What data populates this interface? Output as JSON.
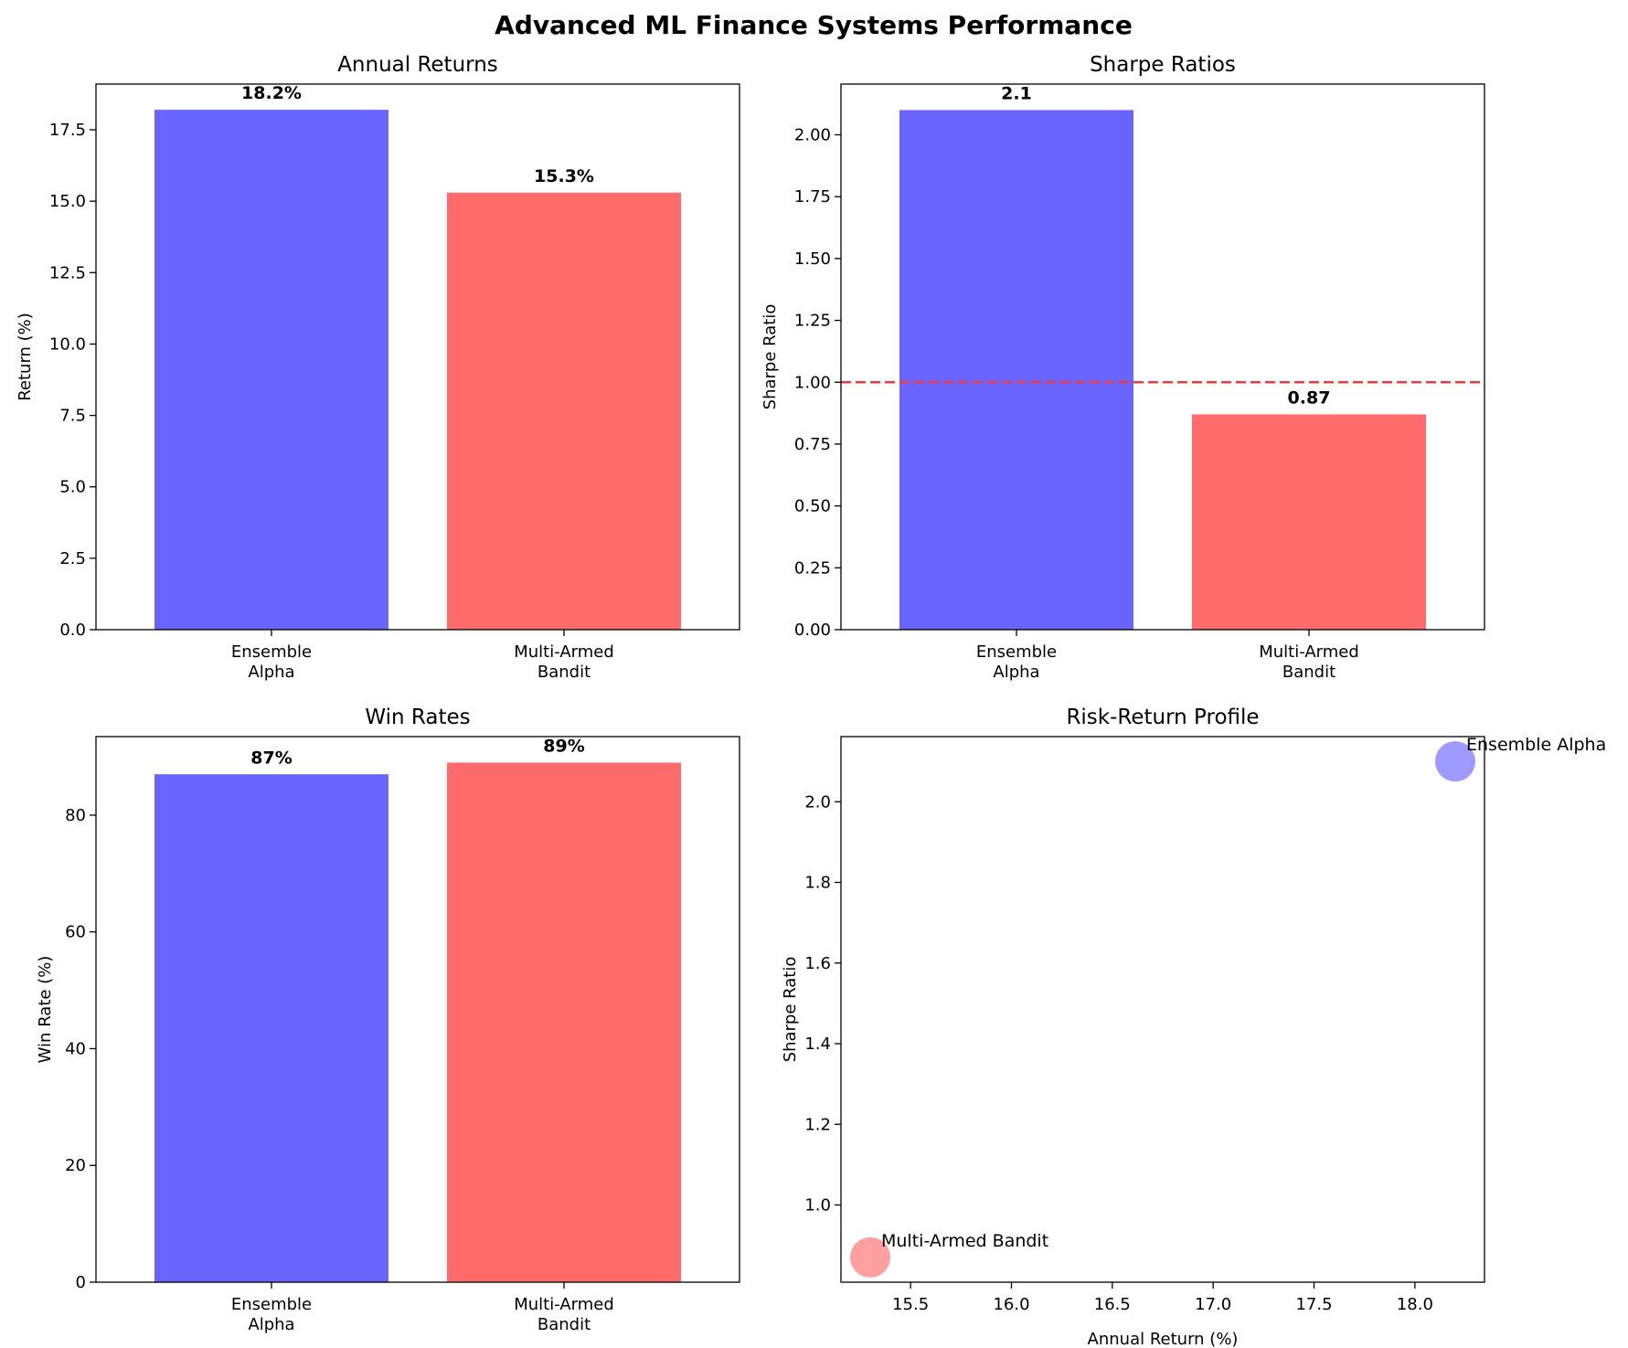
{
  "figure_title": "Advanced ML Finance Systems Performance",
  "colors": {
    "ensemble": "#6a64ff",
    "bandit": "#ff6b6b",
    "reference_line": "#f03b3b"
  },
  "chart_data": [
    {
      "id": "returns",
      "type": "bar",
      "title": "Annual Returns",
      "xlabel": "",
      "ylabel": "Return (%)",
      "categories": [
        [
          "Ensemble",
          "Alpha"
        ],
        [
          "Multi-Armed",
          "Bandit"
        ]
      ],
      "values": [
        18.2,
        15.3
      ],
      "value_labels": [
        "18.2%",
        "15.3%"
      ],
      "ylim": [
        0,
        19.1
      ],
      "yticks": [
        0,
        2.5,
        5,
        7.5,
        10,
        12.5,
        15,
        17.5
      ],
      "ytick_labels": [
        "0.0",
        "2.5",
        "5.0",
        "7.5",
        "10.0",
        "12.5",
        "15.0",
        "17.5"
      ],
      "grid": false
    },
    {
      "id": "sharpe",
      "type": "bar",
      "title": "Sharpe Ratios",
      "xlabel": "",
      "ylabel": "Sharpe Ratio",
      "categories": [
        [
          "Ensemble",
          "Alpha"
        ],
        [
          "Multi-Armed",
          "Bandit"
        ]
      ],
      "values": [
        2.1,
        0.87
      ],
      "value_labels": [
        "2.1",
        "0.87"
      ],
      "ylim": [
        0,
        2.205
      ],
      "yticks": [
        0,
        0.25,
        0.5,
        0.75,
        1.0,
        1.25,
        1.5,
        1.75,
        2.0
      ],
      "ytick_labels": [
        "0.00",
        "0.25",
        "0.50",
        "0.75",
        "1.00",
        "1.25",
        "1.50",
        "1.75",
        "2.00"
      ],
      "reference_line": {
        "y": 1.0,
        "style": "dashed"
      },
      "grid": false
    },
    {
      "id": "winrates",
      "type": "bar",
      "title": "Win Rates",
      "xlabel": "",
      "ylabel": "Win Rate (%)",
      "categories": [
        [
          "Ensemble",
          "Alpha"
        ],
        [
          "Multi-Armed",
          "Bandit"
        ]
      ],
      "values": [
        87,
        89
      ],
      "value_labels": [
        "87%",
        "89%"
      ],
      "ylim": [
        0,
        93.45
      ],
      "yticks": [
        0,
        20,
        40,
        60,
        80
      ],
      "ytick_labels": [
        "0",
        "20",
        "40",
        "60",
        "80"
      ],
      "grid": false
    },
    {
      "id": "riskreturn",
      "type": "scatter",
      "title": "Risk-Return Profile",
      "xlabel": "Annual Return (%)",
      "ylabel": "Sharpe Ratio",
      "points": [
        {
          "label": "Ensemble Alpha",
          "x": 18.2,
          "y": 2.1,
          "series": "ensemble"
        },
        {
          "label": "Multi-Armed Bandit",
          "x": 15.3,
          "y": 0.87,
          "series": "bandit"
        }
      ],
      "xlim": [
        15.155,
        18.345
      ],
      "ylim": [
        0.8085,
        2.1615
      ],
      "xticks": [
        15.5,
        16.0,
        16.5,
        17.0,
        17.5,
        18.0
      ],
      "xtick_labels": [
        "15.5",
        "16.0",
        "16.5",
        "17.0",
        "17.5",
        "18.0"
      ],
      "yticks": [
        1.0,
        1.2,
        1.4,
        1.6,
        1.8,
        2.0
      ],
      "ytick_labels": [
        "1.0",
        "1.2",
        "1.4",
        "1.6",
        "1.8",
        "2.0"
      ],
      "grid": false
    }
  ]
}
